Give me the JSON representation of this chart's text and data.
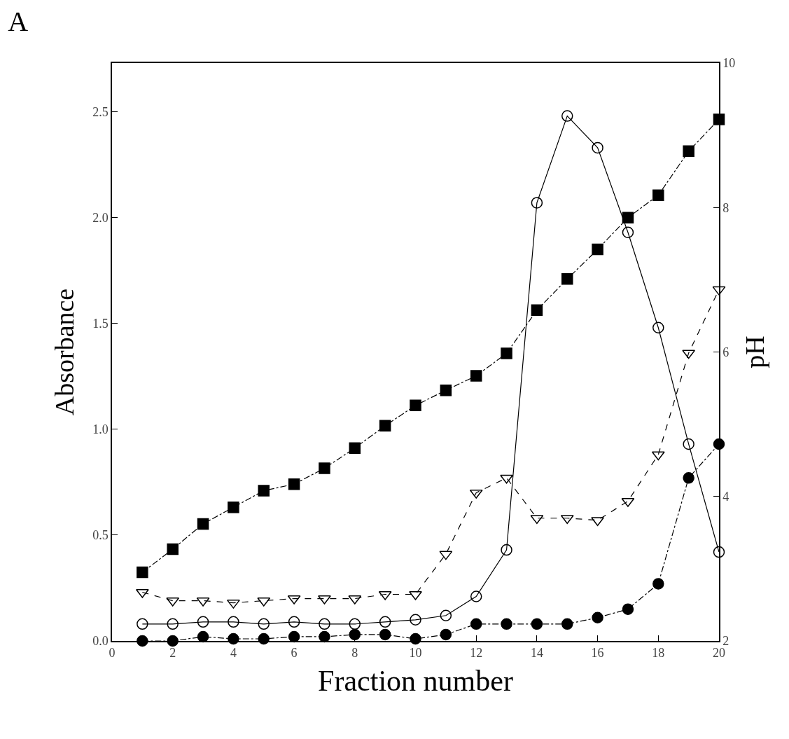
{
  "chart_data": {
    "type": "line",
    "title": "A",
    "xlabel": "Fraction number",
    "ylabel": "Absorbance",
    "y2label": "pH",
    "x": [
      1,
      2,
      3,
      4,
      5,
      6,
      7,
      8,
      9,
      10,
      11,
      12,
      13,
      14,
      15,
      16,
      17,
      18,
      19,
      20
    ],
    "xlim": [
      0,
      20
    ],
    "xticks": [
      0,
      2,
      4,
      6,
      8,
      10,
      12,
      14,
      16,
      18,
      20
    ],
    "ylim": [
      0,
      2.73
    ],
    "yticks": [
      {
        "value": 0,
        "label": "0.0"
      },
      {
        "value": 0.5,
        "label": "0.5"
      },
      {
        "value": 1,
        "label": "1.0"
      },
      {
        "value": 1.5,
        "label": "1.5"
      },
      {
        "value": 2,
        "label": "2.0"
      },
      {
        "value": 2.5,
        "label": "2.5"
      }
    ],
    "y2lim": [
      2,
      10
    ],
    "y2ticks": [
      2,
      4,
      6,
      8,
      10
    ],
    "series": [
      {
        "color": "#000000",
        "marker": "square",
        "line_style": "dashdot",
        "axis": "y2",
        "values": [
          2.95,
          3.27,
          3.62,
          3.85,
          4.08,
          4.17,
          4.39,
          4.67,
          4.98,
          5.26,
          5.47,
          5.67,
          5.98,
          6.58,
          7.01,
          7.42,
          7.86,
          8.17,
          8.78,
          9.22
        ]
      },
      {
        "color": "#000000",
        "marker": "circle-open",
        "line_style": "solid",
        "values": [
          0.08,
          0.08,
          0.09,
          0.09,
          0.08,
          0.09,
          0.08,
          0.08,
          0.09,
          0.1,
          0.12,
          0.21,
          0.43,
          2.07,
          2.48,
          2.33,
          1.93,
          1.48,
          0.93,
          0.42
        ]
      },
      {
        "color": "#000000",
        "marker": "triangle-down-open",
        "line_style": "dashed",
        "values": [
          0.23,
          0.19,
          0.19,
          0.18,
          0.19,
          0.2,
          0.2,
          0.2,
          0.22,
          0.22,
          0.41,
          0.7,
          0.77,
          0.58,
          0.58,
          0.57,
          0.66,
          0.88,
          1.36,
          1.66
        ]
      },
      {
        "color": "#000000",
        "marker": "circle",
        "line_style": "dashdot",
        "values": [
          0.0,
          0.0,
          0.02,
          0.01,
          0.01,
          0.02,
          0.02,
          0.03,
          0.03,
          0.01,
          0.03,
          0.08,
          0.08,
          0.08,
          0.08,
          0.11,
          0.15,
          0.27,
          0.77,
          0.93
        ]
      }
    ]
  }
}
